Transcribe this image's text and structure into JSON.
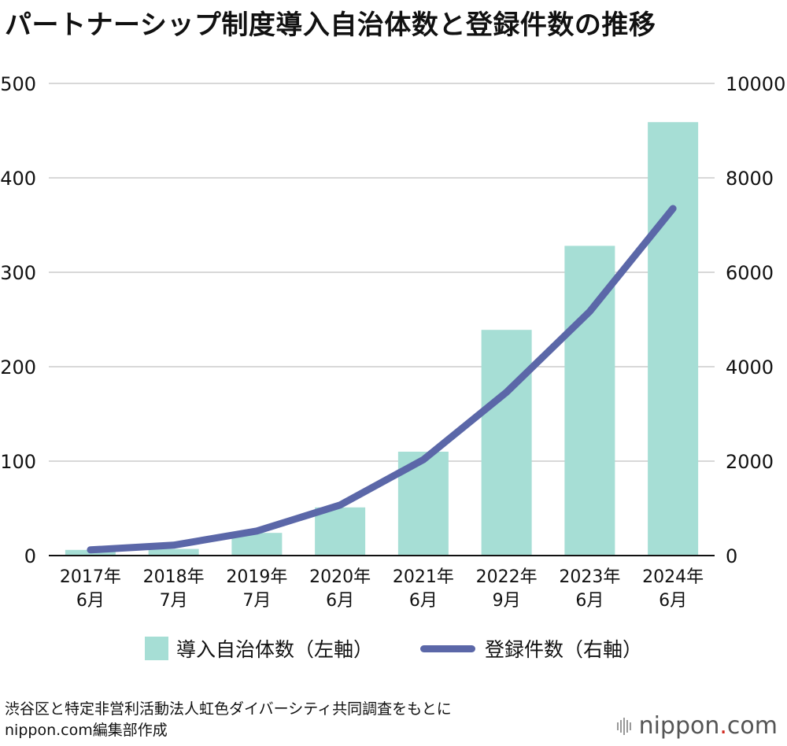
{
  "title": "パートナーシップ制度導入自治体数と登録件数の推移",
  "colors": {
    "bar": "#a6ded5",
    "line": "#5b67a8",
    "grid": "#cccccc",
    "axis": "#111111"
  },
  "chart_data": {
    "type": "bar",
    "categories": [
      [
        "2017年",
        "6月"
      ],
      [
        "2018年",
        "7月"
      ],
      [
        "2019年",
        "7月"
      ],
      [
        "2020年",
        "6月"
      ],
      [
        "2021年",
        "6月"
      ],
      [
        "2022年",
        "9月"
      ],
      [
        "2023年",
        "6月"
      ],
      [
        "2024年",
        "6月"
      ]
    ],
    "series": [
      {
        "name": "導入自治体数（左軸）",
        "type": "bar",
        "axis": "left",
        "values": [
          6,
          7,
          24,
          51,
          110,
          239,
          328,
          459
        ]
      },
      {
        "name": "登録件数（右軸）",
        "type": "line",
        "axis": "right",
        "values": [
          120,
          220,
          520,
          1070,
          2030,
          3460,
          5170,
          7350
        ]
      }
    ],
    "left_axis": {
      "ylim": [
        0,
        500
      ],
      "ticks": [
        "0",
        "100",
        "200",
        "300",
        "400",
        "500"
      ]
    },
    "right_axis": {
      "ylim": [
        0,
        10000
      ],
      "ticks": [
        "0",
        "2000",
        "4000",
        "6000",
        "8000",
        "10000"
      ]
    },
    "grid": true,
    "legend_position": "bottom"
  },
  "legend": {
    "bar_label": "導入自治体数（左軸）",
    "line_label": "登録件数（右軸）"
  },
  "source": {
    "line1": "渋谷区と特定非営利活動法人虹色ダイバーシティ共同調査をもとに",
    "line2": "nippon.com編集部作成"
  },
  "logo": {
    "text": "nippon",
    "dot": ".",
    "suffix": "com"
  }
}
